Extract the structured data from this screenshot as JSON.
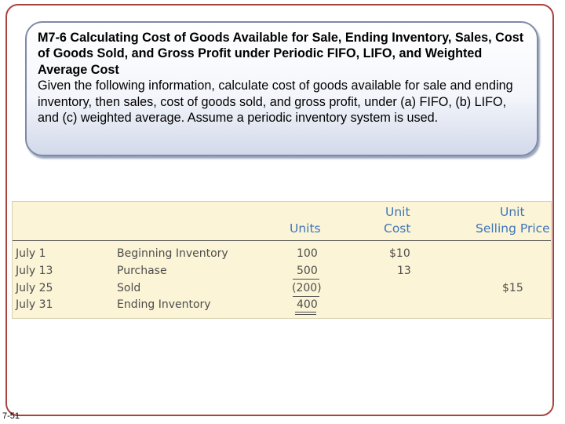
{
  "problem": {
    "title": "M7-6 Calculating Cost of Goods Available for Sale, Ending Inventory, Sales, Cost of Goods Sold, and Gross Profit under Periodic FIFO, LIFO, and Weighted Average Cost",
    "text": "Given the following information, calculate cost of goods available for sale and ending inventory, then sales, cost of goods sold, and gross profit, under (a) FIFO, (b) LIFO, and (c) weighted average. Assume a periodic inventory system is used."
  },
  "table": {
    "headers": {
      "units": "Units",
      "unit_cost_line1": "Unit",
      "unit_cost_line2": "Cost",
      "selling_price_line1": "Unit",
      "selling_price_line2": "Selling Price"
    },
    "rows": [
      {
        "date": "July 1",
        "description": "Beginning Inventory",
        "units": "100",
        "unit_cost": "$10",
        "selling_price": ""
      },
      {
        "date": "July 13",
        "description": "Purchase",
        "units": "500",
        "unit_cost": "13",
        "selling_price": ""
      },
      {
        "date": "July 25",
        "description": "Sold",
        "units": "(200)",
        "unit_cost": "",
        "selling_price": "$15"
      },
      {
        "date": "July 31",
        "description": "Ending Inventory",
        "units": "400",
        "unit_cost": "",
        "selling_price": ""
      }
    ]
  },
  "footer": {
    "page_number": "7-51"
  },
  "colors": {
    "frame": "#a8433e",
    "header_text": "#3f76b9",
    "table_background": "#fbf4d6",
    "body_text": "#4d4d4d"
  }
}
